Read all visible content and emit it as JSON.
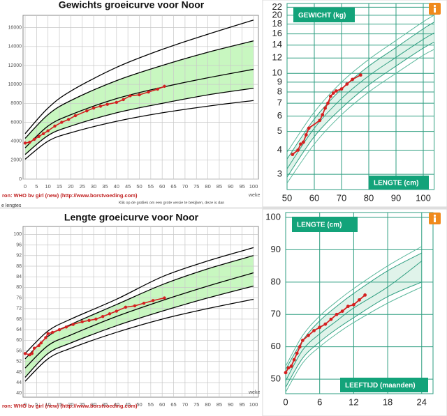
{
  "chart_data": [
    {
      "type": "line",
      "title": "Gewichts groeicurve voor Noor",
      "x_label": "weke",
      "source": "ron: WHO bv girl (new) (http://www.borstvoeding.com)",
      "note": "Klik op de grafiek om een grote versie te bekijken, deze is dan",
      "footer": "e lengtes",
      "xlim": [
        0,
        100
      ],
      "ylim": [
        0,
        17300
      ],
      "xticks": [
        0,
        5,
        10,
        15,
        20,
        25,
        30,
        35,
        40,
        45,
        50,
        55,
        60,
        65,
        70,
        75,
        80,
        85,
        90,
        95,
        100
      ],
      "yticks": [
        0,
        2000,
        4000,
        6000,
        8000,
        10000,
        12000,
        14000,
        16000
      ],
      "grid": true,
      "band": {
        "between": [
          1,
          3
        ],
        "color": "#c8f7c0"
      },
      "series": [
        {
          "color": "#000000",
          "x": [
            0,
            10,
            20,
            40,
            60,
            80,
            100
          ],
          "values": [
            4800,
            7500,
            9300,
            11800,
            13700,
            15300,
            16800
          ]
        },
        {
          "color": "#000000",
          "x": [
            0,
            10,
            20,
            40,
            60,
            80,
            100
          ],
          "values": [
            4300,
            6800,
            8300,
            10400,
            12000,
            13400,
            14600
          ]
        },
        {
          "color": "#000000",
          "x": [
            0,
            10,
            20,
            40,
            60,
            80,
            100
          ],
          "values": [
            3300,
            5600,
            6800,
            8500,
            9700,
            10700,
            11600
          ]
        },
        {
          "color": "#000000",
          "x": [
            0,
            10,
            20,
            40,
            60,
            80,
            100
          ],
          "values": [
            2600,
            4600,
            5600,
            7000,
            8000,
            8900,
            9600
          ]
        },
        {
          "color": "#000000",
          "x": [
            0,
            10,
            20,
            40,
            60,
            80,
            100
          ],
          "values": [
            2100,
            4000,
            4900,
            6100,
            7000,
            7700,
            8300
          ]
        },
        {
          "color": "#d42020",
          "marker": true,
          "x": [
            0,
            2,
            4,
            6,
            8,
            10,
            13,
            16,
            19,
            22,
            27,
            30,
            33,
            36,
            40,
            43,
            46,
            50,
            54,
            58,
            61
          ],
          "values": [
            3800,
            3900,
            4200,
            4500,
            4800,
            5100,
            5600,
            6000,
            6300,
            6700,
            7200,
            7500,
            7700,
            7900,
            8100,
            8400,
            8800,
            8900,
            9200,
            9500,
            9800
          ]
        }
      ]
    },
    {
      "type": "line",
      "title": "Lengte groeicurve voor Noor",
      "x_label": "weke",
      "source": "ron: WHO bv girl (new) (http://www.borstvoeding.com)",
      "xlim": [
        0,
        100
      ],
      "ylim": [
        38.5,
        103
      ],
      "xticks": [
        0,
        5,
        10,
        15,
        20,
        25,
        30,
        35,
        40,
        45,
        50,
        55,
        60,
        65,
        70,
        75,
        80,
        85,
        90,
        95,
        100
      ],
      "yticks": [
        40,
        44,
        48,
        52,
        56,
        60,
        64,
        68,
        72,
        76,
        80,
        84,
        88,
        92,
        96,
        100
      ],
      "grid": true,
      "band": {
        "between": [
          1,
          3
        ],
        "color": "#c8f7c0"
      },
      "series": [
        {
          "color": "#000000",
          "x": [
            0,
            10,
            20,
            40,
            60,
            80,
            100
          ],
          "values": [
            55,
            63.5,
            68,
            75.5,
            84,
            90,
            95
          ]
        },
        {
          "color": "#000000",
          "x": [
            0,
            10,
            20,
            40,
            60,
            80,
            100
          ],
          "values": [
            53,
            61.5,
            66,
            73.5,
            81,
            87,
            92
          ]
        },
        {
          "color": "#000000",
          "x": [
            0,
            10,
            20,
            40,
            60,
            80,
            100
          ],
          "values": [
            49.5,
            58,
            62,
            69,
            75,
            80.5,
            85.5
          ]
        },
        {
          "color": "#000000",
          "x": [
            0,
            10,
            20,
            40,
            60,
            80,
            100
          ],
          "values": [
            46,
            55,
            59,
            65.5,
            71,
            76,
            80.5
          ]
        },
        {
          "color": "#000000",
          "x": [
            0,
            10,
            20,
            40,
            60,
            80,
            100
          ],
          "values": [
            44.5,
            53,
            57,
            63,
            68,
            72,
            75.5
          ]
        },
        {
          "color": "#d42020",
          "marker": true,
          "x": [
            0,
            2,
            3,
            4,
            6,
            7,
            9,
            10,
            12,
            15,
            18,
            21,
            25,
            28,
            31,
            34,
            37,
            40,
            44,
            48,
            52,
            56,
            61
          ],
          "values": [
            55,
            54.5,
            55,
            57,
            58,
            59,
            61,
            62.5,
            63,
            64,
            65,
            66,
            67,
            67.5,
            68,
            69,
            70,
            71,
            72.5,
            73,
            74,
            75,
            76
          ]
        }
      ]
    },
    {
      "type": "line",
      "y_label": "GEWICHT (kg)",
      "x_label": "LENGTE (cm)",
      "yscale": "log",
      "xlim": [
        50,
        104
      ],
      "ylim": [
        2.5,
        23
      ],
      "xticks": [
        50,
        60,
        70,
        80,
        90,
        100
      ],
      "yticks": [
        3,
        4,
        5,
        6,
        7,
        8,
        9,
        10,
        12,
        14,
        16,
        18,
        20,
        22
      ],
      "grid": true,
      "band": {
        "between": [
          1,
          3
        ],
        "color": "#e0f3ea"
      },
      "series": [
        {
          "color": "#5cb89c",
          "x": [
            50,
            60,
            70,
            80,
            90,
            100,
            104
          ],
          "values": [
            3.9,
            6.3,
            9.0,
            11.8,
            14.8,
            18.5,
            20.0
          ]
        },
        {
          "color": "#2e9e80",
          "x": [
            50,
            60,
            70,
            80,
            90,
            100,
            104
          ],
          "values": [
            3.6,
            5.8,
            8.3,
            10.9,
            13.6,
            17.0,
            18.4
          ]
        },
        {
          "color": "#2e9e80",
          "x": [
            50,
            60,
            70,
            80,
            90,
            100,
            104
          ],
          "values": [
            3.2,
            5.2,
            7.4,
            9.7,
            12.1,
            15.0,
            16.2
          ]
        },
        {
          "color": "#2e9e80",
          "x": [
            50,
            60,
            70,
            80,
            90,
            100,
            104
          ],
          "values": [
            2.9,
            4.7,
            6.6,
            8.7,
            10.9,
            13.5,
            14.5
          ]
        },
        {
          "color": "#5cb89c",
          "x": [
            50,
            60,
            70,
            80,
            90,
            100,
            104
          ],
          "values": [
            2.7,
            4.3,
            6.1,
            8.0,
            10.0,
            12.4,
            13.3
          ]
        },
        {
          "color": "#d42020",
          "marker": true,
          "x": [
            52,
            54,
            55,
            56,
            57,
            58,
            62,
            63,
            64,
            65,
            66,
            67,
            68,
            70,
            72,
            74,
            77
          ],
          "values": [
            3.8,
            4.0,
            4.3,
            4.4,
            4.8,
            5.2,
            5.7,
            6.1,
            6.6,
            7.0,
            7.6,
            7.9,
            8.1,
            8.3,
            8.8,
            9.3,
            9.8
          ]
        }
      ]
    },
    {
      "type": "line",
      "y_label": "LENGTE (cm)",
      "x_label": "LEEFTIJD (maanden)",
      "xlim": [
        0,
        26
      ],
      "ylim": [
        45.5,
        101.5
      ],
      "xticks": [
        0,
        6,
        12,
        18,
        24
      ],
      "yticks": [
        50,
        60,
        70,
        80,
        90,
        100
      ],
      "grid": true,
      "band": {
        "between": [
          1,
          3
        ],
        "color": "#e0f3ea"
      },
      "series": [
        {
          "color": "#5cb89c",
          "x": [
            0,
            3,
            6,
            9,
            12,
            18,
            24
          ],
          "values": [
            54,
            63.5,
            69.5,
            74,
            78,
            85,
            91
          ]
        },
        {
          "color": "#2e9e80",
          "x": [
            0,
            3,
            6,
            9,
            12,
            18,
            24
          ],
          "values": [
            53,
            62,
            68,
            72.5,
            76.5,
            83.5,
            89
          ]
        },
        {
          "color": "#2e9e80",
          "x": [
            0,
            3,
            6,
            9,
            12,
            18,
            24
          ],
          "values": [
            49.5,
            59,
            64,
            68,
            72,
            78.5,
            86.5
          ]
        },
        {
          "color": "#2e9e80",
          "x": [
            0,
            3,
            6,
            9,
            12,
            18,
            24
          ],
          "values": [
            47.5,
            56.5,
            61.5,
            65.5,
            69,
            75.5,
            80
          ]
        },
        {
          "color": "#5cb89c",
          "x": [
            0,
            3,
            6,
            9,
            12,
            18,
            24
          ],
          "values": [
            46,
            55,
            60,
            64,
            67.5,
            73.5,
            78.5
          ]
        },
        {
          "color": "#d42020",
          "marker": true,
          "x": [
            0,
            0.5,
            1,
            1.5,
            2,
            2.5,
            3,
            4,
            5,
            6,
            7,
            8,
            9,
            10,
            11,
            12,
            13,
            14
          ],
          "values": [
            52,
            53.5,
            54,
            56,
            58,
            60,
            62,
            63.5,
            65,
            66,
            67,
            68.5,
            70,
            71,
            72.5,
            73,
            74.5,
            76
          ]
        }
      ]
    }
  ]
}
